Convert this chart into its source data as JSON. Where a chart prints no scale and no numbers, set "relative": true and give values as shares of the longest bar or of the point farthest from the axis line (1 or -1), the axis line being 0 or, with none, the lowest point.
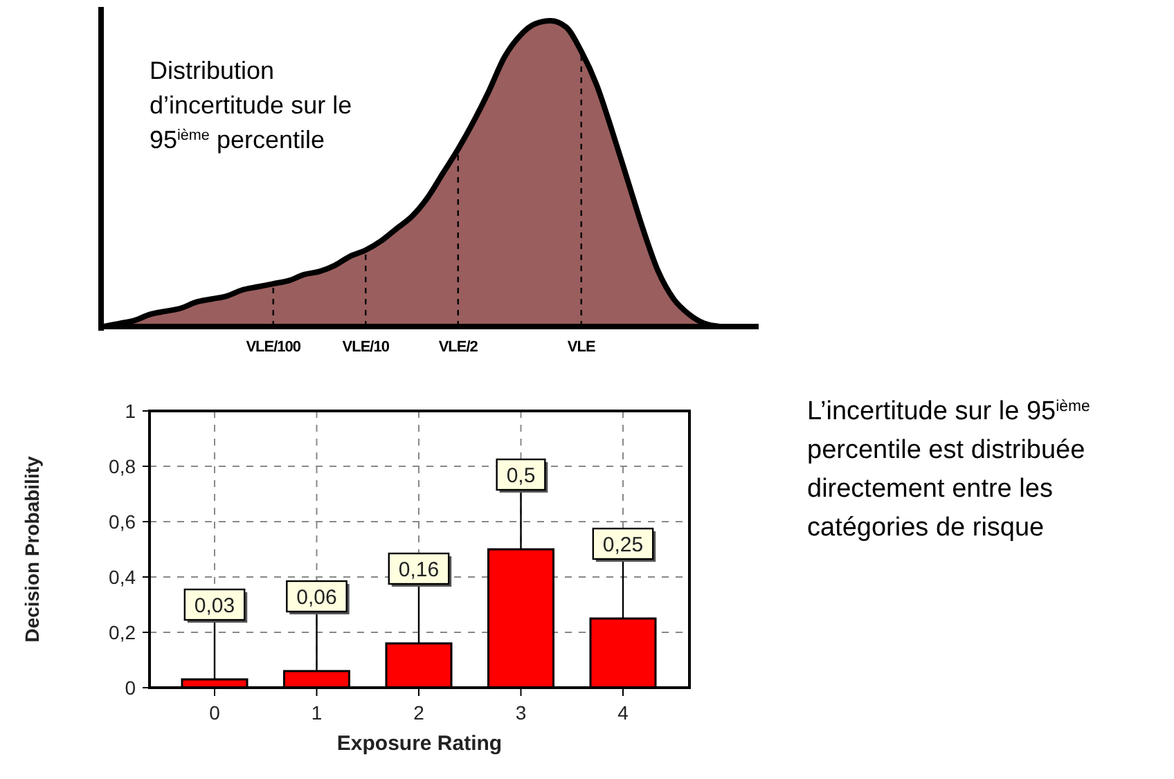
{
  "chart_data": [
    {
      "type": "area",
      "relative": true,
      "annotations": [
        "Distribution d’incertitude sur le 95$^{ième}$ percentile"
      ],
      "categories": [
        null,
        null,
        null,
        null,
        null,
        null,
        null,
        null,
        null,
        null,
        null,
        "VLE/100",
        null,
        null,
        null,
        null,
        null,
        "VLE/10",
        null,
        null,
        null,
        null,
        null,
        "VLE/2",
        null,
        null,
        null,
        null,
        null,
        null,
        null,
        "VLE",
        null,
        null,
        null,
        null,
        null,
        null,
        null,
        null,
        null
      ],
      "series": [
        {
          "color": "#9a5e5e",
          "values": [
            0,
            0.01,
            0.02,
            0.04,
            0.05,
            0.06,
            0.08,
            0.09,
            0.1,
            0.12,
            0.13,
            0.14,
            0.15,
            0.17,
            0.18,
            0.2,
            0.23,
            0.25,
            0.28,
            0.32,
            0.36,
            0.42,
            0.5,
            0.58,
            0.67,
            0.77,
            0.88,
            0.95,
            0.99,
            1,
            0.98,
            0.9,
            0.79,
            0.64,
            0.48,
            0.32,
            0.18,
            0.09,
            0.04,
            0.01,
            0
          ]
        }
      ],
      "ref_lines": [
        {
          "axis": "x",
          "value": "VLE/100",
          "line_style": "dashed"
        },
        {
          "axis": "x",
          "value": "VLE/10",
          "line_style": "dashed"
        },
        {
          "axis": "x",
          "value": "VLE/2",
          "line_style": "dashed"
        },
        {
          "axis": "x",
          "value": "VLE",
          "line_style": "dashed"
        }
      ]
    },
    {
      "type": "bar",
      "categories": [
        "0",
        "1",
        "2",
        "3",
        "4"
      ],
      "values": [
        0.03,
        0.06,
        0.16,
        0.5,
        0.25
      ],
      "color": "#ff0000",
      "value_labels": [
        "0,03",
        "0,06",
        "0,16",
        "0,5",
        "0,25"
      ],
      "ylim": [
        0,
        1
      ],
      "yticks": [
        0,
        {
          "value": 0.2,
          "label": "0,2"
        },
        {
          "value": 0.4,
          "label": "0,4"
        },
        {
          "value": 0.6,
          "label": "0,6"
        },
        {
          "value": 0.8,
          "label": "0,8"
        },
        1
      ],
      "grid": true,
      "xlabel": "Exposure Rating",
      "ylabel": "Decision Probability"
    },
    {
      "type": "other",
      "annotations": [
        "L’incertitude sur le 95$^{ième}$ percentile est distribuée directement entre les catégories de risque"
      ]
    }
  ]
}
